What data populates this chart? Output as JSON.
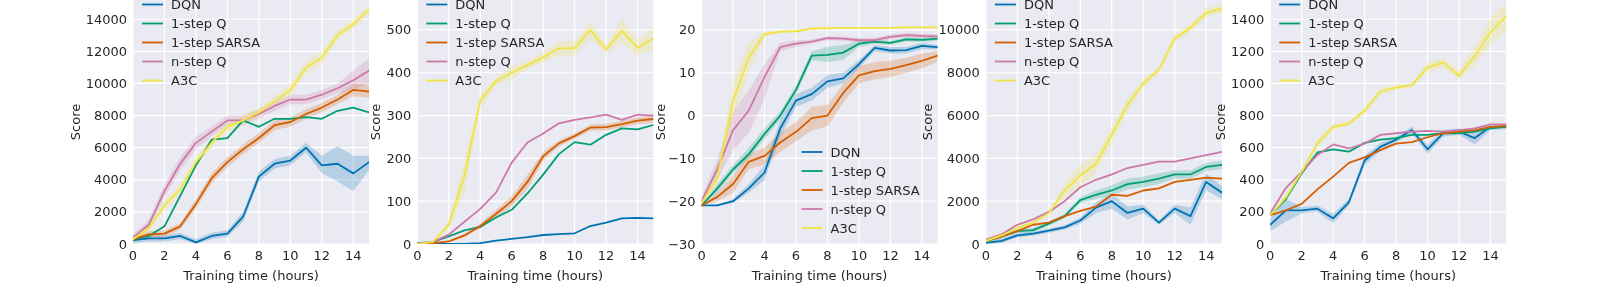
{
  "chart_data": [
    {
      "type": "line",
      "xlabel": "Training time (hours)",
      "ylabel": "Score",
      "x": [
        0,
        1,
        2,
        3,
        4,
        5,
        6,
        7,
        8,
        9,
        10,
        11,
        12,
        13,
        14,
        15
      ],
      "xlim": [
        0,
        15
      ],
      "xticks": [
        0,
        2,
        4,
        6,
        8,
        10,
        12,
        14
      ],
      "ylim": [
        0,
        15200
      ],
      "yticks": [
        0,
        2000,
        4000,
        6000,
        8000,
        10000,
        12000,
        14000
      ],
      "grid": true,
      "legend": "top left",
      "series": [
        {
          "name": "DQN",
          "color": "#0072b2",
          "values": [
            250,
            350,
            350,
            500,
            100,
            500,
            650,
            1700,
            4200,
            5000,
            5200,
            6000,
            4900,
            5000,
            4400,
            5100
          ],
          "lower": [
            50,
            150,
            150,
            300,
            0,
            300,
            450,
            1400,
            3900,
            4700,
            4900,
            5700,
            4400,
            3900,
            3300,
            4600
          ],
          "upper": [
            450,
            550,
            550,
            700,
            300,
            700,
            850,
            2000,
            4500,
            5300,
            5500,
            6300,
            5500,
            6100,
            5500,
            5500
          ]
        },
        {
          "name": "1-step Q",
          "color": "#009e73",
          "values": [
            300,
            500,
            1100,
            3000,
            4900,
            6500,
            6600,
            7700,
            7300,
            7800,
            7800,
            7900,
            7800,
            8300,
            8500,
            8200
          ]
        },
        {
          "name": "1-step SARSA",
          "color": "#d55e00",
          "values": [
            300,
            600,
            650,
            1100,
            2500,
            4100,
            5100,
            5900,
            6600,
            7400,
            7600,
            8100,
            8500,
            9000,
            9600,
            9500
          ],
          "lower": [
            100,
            400,
            450,
            900,
            2200,
            3800,
            4800,
            5600,
            6300,
            7100,
            7300,
            7800,
            8200,
            8700,
            9200,
            9100
          ],
          "upper": [
            500,
            800,
            850,
            1300,
            2800,
            4400,
            5400,
            6200,
            6900,
            7700,
            7900,
            8400,
            8800,
            9300,
            10000,
            9900
          ]
        },
        {
          "name": "n-step Q",
          "color": "#cc79a7",
          "values": [
            400,
            1200,
            3300,
            5000,
            6300,
            7000,
            7700,
            7700,
            8100,
            8600,
            9000,
            9000,
            9300,
            9700,
            10200,
            10800
          ],
          "lower": [
            200,
            900,
            2900,
            4600,
            5900,
            6700,
            7400,
            7400,
            7800,
            8300,
            8700,
            8700,
            9000,
            9400,
            9600,
            10000
          ],
          "upper": [
            600,
            1500,
            3700,
            5400,
            6700,
            7300,
            8000,
            8000,
            8400,
            8900,
            9300,
            9300,
            9600,
            10000,
            10800,
            11600
          ]
        },
        {
          "name": "A3C",
          "color": "#f0e442",
          "values": [
            300,
            1000,
            2400,
            3400,
            5100,
            6300,
            7300,
            7700,
            8200,
            8900,
            9600,
            11000,
            11600,
            13000,
            13700,
            14600
          ],
          "lower": [
            100,
            800,
            2100,
            3100,
            4800,
            6000,
            7000,
            7400,
            7900,
            8600,
            9200,
            10600,
            11200,
            12700,
            13400,
            14300
          ],
          "upper": [
            500,
            1200,
            2700,
            3700,
            5400,
            6600,
            7600,
            8000,
            8500,
            9200,
            10000,
            11400,
            12000,
            13300,
            14000,
            14900
          ]
        }
      ]
    },
    {
      "type": "line",
      "xlabel": "Training time (hours)",
      "ylabel": "Score",
      "x": [
        0,
        1,
        2,
        3,
        4,
        5,
        6,
        7,
        8,
        9,
        10,
        11,
        12,
        13,
        14,
        15
      ],
      "xlim": [
        0,
        15
      ],
      "xticks": [
        0,
        2,
        4,
        6,
        8,
        10,
        12,
        14
      ],
      "ylim": [
        0,
        570
      ],
      "yticks": [
        0,
        100,
        200,
        300,
        400,
        500
      ],
      "grid": true,
      "legend": "top left",
      "series": [
        {
          "name": "DQN",
          "color": "#0072b2",
          "values": [
            0,
            0,
            0,
            0,
            2,
            8,
            12,
            16,
            21,
            23,
            25,
            42,
            50,
            60,
            61,
            60
          ]
        },
        {
          "name": "1-step Q",
          "color": "#009e73",
          "values": [
            2,
            5,
            18,
            32,
            40,
            62,
            80,
            118,
            162,
            210,
            238,
            232,
            255,
            270,
            268,
            278
          ]
        },
        {
          "name": "1-step SARSA",
          "color": "#d55e00",
          "values": [
            0,
            2,
            6,
            20,
            42,
            70,
            100,
            145,
            205,
            235,
            252,
            272,
            273,
            280,
            288,
            292
          ],
          "lower": [
            0,
            1,
            4,
            16,
            36,
            60,
            88,
            128,
            195,
            228,
            245,
            265,
            265,
            272,
            280,
            283
          ],
          "upper": [
            1,
            3,
            8,
            24,
            48,
            80,
            112,
            162,
            215,
            242,
            259,
            279,
            281,
            288,
            296,
            301
          ]
        },
        {
          "name": "n-step Q",
          "color": "#cc79a7",
          "values": [
            0,
            5,
            22,
            52,
            82,
            120,
            190,
            237,
            258,
            282,
            290,
            296,
            302,
            290,
            302,
            300
          ]
        },
        {
          "name": "A3C",
          "color": "#f0e442",
          "values": [
            0,
            5,
            45,
            160,
            335,
            380,
            400,
            418,
            436,
            457,
            457,
            500,
            455,
            498,
            458,
            480
          ],
          "lower": [
            0,
            3,
            35,
            120,
            320,
            370,
            385,
            408,
            425,
            440,
            440,
            480,
            445,
            470,
            440,
            455
          ],
          "upper": [
            1,
            7,
            55,
            200,
            350,
            390,
            415,
            428,
            447,
            474,
            474,
            520,
            465,
            526,
            476,
            505
          ]
        }
      ]
    },
    {
      "type": "line",
      "xlabel": "Training time (hours)",
      "ylabel": "Score",
      "x": [
        0,
        1,
        2,
        3,
        4,
        5,
        6,
        7,
        8,
        9,
        10,
        11,
        12,
        13,
        14,
        15
      ],
      "xlim": [
        0,
        15
      ],
      "xticks": [
        0,
        2,
        4,
        6,
        8,
        10,
        12,
        14
      ],
      "ylim": [
        -30,
        27
      ],
      "yticks": [
        -30,
        -20,
        -10,
        0,
        10,
        20
      ],
      "grid": true,
      "legend": "bottom right",
      "series": [
        {
          "name": "DQN",
          "color": "#0072b2",
          "values": [
            -21,
            -21,
            -20,
            -17,
            -13.3,
            -3,
            3.5,
            5,
            8,
            8.7,
            12,
            15.8,
            15.2,
            15.3,
            16.3,
            16
          ],
          "lower": [
            -21,
            -21,
            -20.5,
            -18,
            -15,
            -5,
            2,
            3.5,
            6.5,
            7.5,
            11,
            15,
            14.5,
            14.5,
            15.5,
            15.5
          ],
          "upper": [
            -21,
            -21,
            -19.5,
            -16,
            -11.5,
            -1,
            5,
            6.5,
            9.5,
            10,
            13,
            16.5,
            16,
            16,
            17,
            16.5
          ]
        },
        {
          "name": "1-step Q",
          "color": "#009e73",
          "values": [
            -21,
            -17,
            -12.6,
            -9,
            -4.3,
            0,
            6,
            14,
            14.2,
            14.7,
            16.8,
            17.3,
            17,
            17.8,
            17.7,
            18
          ],
          "lower": [
            -21,
            -18,
            -13.5,
            -10,
            -5.5,
            -1,
            5,
            13,
            12.5,
            13,
            16,
            16.8,
            16.5,
            17.3,
            17.2,
            17.5
          ],
          "upper": [
            -21,
            -16,
            -11.5,
            -7.5,
            -3,
            1,
            7,
            15,
            16,
            16.5,
            17.5,
            17.8,
            17.5,
            18.3,
            18.2,
            18.5
          ]
        },
        {
          "name": "1-step SARSA",
          "color": "#d55e00",
          "values": [
            -21,
            -19,
            -16,
            -10.8,
            -9.4,
            -6.3,
            -3.8,
            -0.6,
            0,
            5.3,
            9.4,
            10.4,
            10.9,
            11.8,
            12.8,
            14
          ],
          "lower": [
            -21,
            -20,
            -18,
            -12.5,
            -11.5,
            -8.5,
            -6,
            -3.5,
            -2.5,
            3,
            7.5,
            8.5,
            9,
            10,
            11,
            12.5
          ],
          "upper": [
            -21,
            -18,
            -14,
            -9,
            -7.5,
            -4,
            -1.5,
            2,
            2.5,
            7.5,
            11.5,
            12.5,
            12.8,
            13.5,
            14.5,
            15
          ]
        },
        {
          "name": "n-step Q",
          "color": "#cc79a7",
          "values": [
            -20,
            -12.5,
            -3.4,
            1.2,
            9,
            16,
            16.8,
            17.3,
            18.1,
            18,
            17.6,
            17.6,
            18.4,
            18.8,
            18.6,
            18.5
          ],
          "lower": [
            -21,
            -15,
            -8,
            -4,
            4,
            15,
            16,
            16.8,
            17.6,
            17.5,
            17,
            17,
            17.8,
            18.3,
            18,
            18
          ],
          "upper": [
            -19,
            -10,
            1,
            6,
            12,
            17,
            17.6,
            17.8,
            18.6,
            18.5,
            18.2,
            18.2,
            19,
            19.3,
            19.2,
            19
          ]
        },
        {
          "name": "A3C",
          "color": "#f0e442",
          "values": [
            -20.5,
            -14.5,
            3.5,
            13.5,
            19,
            19.6,
            19.7,
            20.3,
            20.4,
            20.5,
            20.5,
            20.5,
            20.5,
            20.6,
            20.6,
            20.6
          ],
          "lower": [
            -21,
            -16,
            -1,
            10,
            18.5,
            19.3,
            19.4,
            20,
            20.2,
            20.3,
            20.3,
            20.3,
            20.3,
            20.4,
            20.4,
            20.4
          ],
          "upper": [
            -20,
            -13,
            8,
            17,
            19.5,
            19.9,
            20,
            20.6,
            20.6,
            20.7,
            20.7,
            20.7,
            20.7,
            20.8,
            20.8,
            20.8
          ]
        }
      ]
    },
    {
      "type": "line",
      "xlabel": "Training time (hours)",
      "ylabel": "Score",
      "x": [
        0,
        1,
        2,
        3,
        4,
        5,
        6,
        7,
        8,
        9,
        10,
        11,
        12,
        13,
        14,
        15
      ],
      "xlim": [
        0,
        15
      ],
      "xticks": [
        0,
        2,
        4,
        6,
        8,
        10,
        12,
        14
      ],
      "ylim": [
        0,
        11400
      ],
      "yticks": [
        0,
        2000,
        4000,
        6000,
        8000,
        10000
      ],
      "grid": true,
      "legend": "top left",
      "series": [
        {
          "name": "DQN",
          "color": "#0072b2",
          "values": [
            50,
            150,
            400,
            480,
            620,
            780,
            1100,
            1700,
            2000,
            1450,
            1650,
            1000,
            1650,
            1300,
            2900,
            2400
          ],
          "lower": [
            0,
            50,
            300,
            380,
            520,
            680,
            950,
            1450,
            1650,
            1150,
            1450,
            900,
            1450,
            900,
            2500,
            2100
          ],
          "upper": [
            150,
            250,
            500,
            580,
            720,
            880,
            1250,
            1950,
            2350,
            1750,
            1850,
            1100,
            1850,
            1700,
            3300,
            2700
          ]
        },
        {
          "name": "1-step Q",
          "color": "#009e73",
          "values": [
            150,
            350,
            600,
            650,
            950,
            1300,
            2050,
            2300,
            2500,
            2800,
            2900,
            3050,
            3250,
            3250,
            3600,
            3700
          ],
          "lower": [
            50,
            250,
            500,
            550,
            850,
            1200,
            1900,
            2100,
            2250,
            2550,
            2650,
            2800,
            3050,
            3050,
            3400,
            3500
          ],
          "upper": [
            250,
            450,
            700,
            750,
            1050,
            1400,
            2200,
            2500,
            2750,
            3050,
            3150,
            3300,
            3450,
            3450,
            3800,
            3900
          ]
        },
        {
          "name": "1-step SARSA",
          "color": "#d55e00",
          "values": [
            150,
            350,
            600,
            900,
            1000,
            1300,
            1550,
            1750,
            2300,
            2250,
            2500,
            2600,
            2900,
            3000,
            3100,
            3050
          ]
        },
        {
          "name": "n-step Q",
          "color": "#cc79a7",
          "values": [
            200,
            450,
            900,
            1150,
            1500,
            2000,
            2650,
            3000,
            3250,
            3550,
            3700,
            3850,
            3850,
            4000,
            4150,
            4300
          ]
        },
        {
          "name": "A3C",
          "color": "#f0e442",
          "values": [
            150,
            400,
            750,
            1000,
            1450,
            2500,
            3200,
            3750,
            5100,
            6500,
            7500,
            8150,
            9600,
            10100,
            10800,
            11000
          ],
          "lower": [
            50,
            300,
            650,
            900,
            1350,
            2200,
            2700,
            3300,
            4700,
            6200,
            7300,
            8000,
            9400,
            9900,
            10600,
            10800
          ],
          "upper": [
            250,
            500,
            850,
            1100,
            1550,
            2800,
            3700,
            4200,
            5500,
            6800,
            7700,
            8300,
            9800,
            10300,
            11000,
            11200
          ]
        }
      ]
    },
    {
      "type": "line",
      "xlabel": "Training time (hours)",
      "ylabel": "Score",
      "x": [
        0,
        1,
        2,
        3,
        4,
        5,
        6,
        7,
        8,
        9,
        10,
        11,
        12,
        13,
        14,
        15
      ],
      "xlim": [
        0,
        15
      ],
      "xticks": [
        0,
        2,
        4,
        6,
        8,
        10,
        12,
        14
      ],
      "ylim": [
        0,
        1520
      ],
      "yticks": [
        0,
        200,
        400,
        600,
        800,
        1000,
        1200,
        1400
      ],
      "grid": true,
      "legend": "top left",
      "series": [
        {
          "name": "DQN",
          "color": "#0072b2",
          "values": [
            120,
            210,
            210,
            220,
            160,
            260,
            520,
            605,
            650,
            710,
            590,
            690,
            700,
            660,
            730,
            730
          ],
          "lower": [
            80,
            140,
            190,
            200,
            130,
            240,
            490,
            580,
            630,
            690,
            560,
            670,
            680,
            620,
            710,
            715
          ],
          "upper": [
            160,
            280,
            230,
            240,
            190,
            280,
            550,
            630,
            670,
            730,
            620,
            710,
            720,
            700,
            750,
            745
          ]
        },
        {
          "name": "1-step Q",
          "color": "#009e73",
          "values": [
            180,
            280,
            440,
            570,
            590,
            575,
            630,
            650,
            660,
            680,
            680,
            690,
            690,
            700,
            720,
            730
          ]
        },
        {
          "name": "1-step SARSA",
          "color": "#d55e00",
          "values": [
            180,
            210,
            250,
            340,
            420,
            505,
            540,
            585,
            625,
            635,
            665,
            690,
            700,
            710,
            730,
            735
          ]
        },
        {
          "name": "n-step Q",
          "color": "#cc79a7",
          "values": [
            190,
            350,
            450,
            555,
            620,
            595,
            625,
            680,
            690,
            700,
            705,
            700,
            710,
            720,
            745,
            745
          ]
        },
        {
          "name": "A3C",
          "color": "#f0e442",
          "values": [
            180,
            290,
            450,
            625,
            730,
            750,
            830,
            950,
            975,
            990,
            1100,
            1130,
            1050,
            1170,
            1320,
            1420
          ],
          "lower": [
            170,
            270,
            430,
            600,
            710,
            735,
            810,
            925,
            960,
            975,
            1070,
            1100,
            1020,
            1110,
            1240,
            1330
          ],
          "upper": [
            190,
            310,
            470,
            650,
            750,
            765,
            850,
            975,
            990,
            1005,
            1130,
            1160,
            1080,
            1230,
            1400,
            1510
          ]
        }
      ]
    }
  ]
}
